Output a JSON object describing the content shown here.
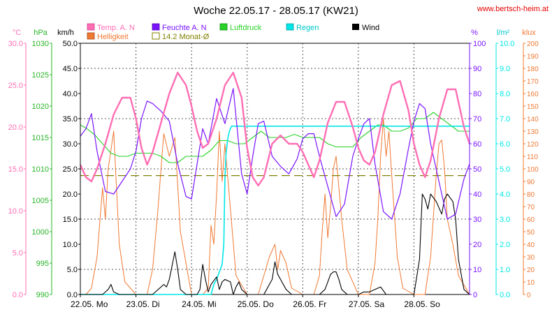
{
  "title": "Woche 22.05.17 - 28.05.17 (KW21)",
  "site": "www.bertsch-heim.at",
  "legend": [
    {
      "key": "temp",
      "label": "Temp. A. N",
      "color": "#ff6eb4"
    },
    {
      "key": "hum",
      "label": "Feuchte A. N",
      "color": "#7a14ff"
    },
    {
      "key": "press",
      "label": "Luftdruck",
      "color": "#28d228"
    },
    {
      "key": "rain",
      "label": "Regen",
      "color": "#00e6e6"
    },
    {
      "key": "wind",
      "label": "Wind",
      "color": "#000000"
    },
    {
      "key": "light",
      "label": "Helligkeit",
      "color": "#f07832"
    },
    {
      "key": "avg",
      "label": "14.2 Monat-Ø",
      "color": "#808000"
    }
  ],
  "axes": {
    "temp": {
      "unit": "°C",
      "ticks": [
        "30.0",
        "25.0",
        "20.0",
        "15.0",
        "10.0",
        "5.0",
        "0.0"
      ],
      "color": "#ff6eb4",
      "range": [
        0,
        30
      ]
    },
    "press": {
      "unit": "hPa",
      "ticks": [
        "1030",
        "1025",
        "1020",
        "1015",
        "1010",
        "1005",
        "1000",
        "995",
        "990"
      ],
      "color": "#28b428",
      "range": [
        990,
        1030
      ]
    },
    "wind": {
      "unit": "km/h",
      "ticks": [
        "50.0",
        "45.0",
        "40.0",
        "35.0",
        "30.0",
        "25.0",
        "20.0",
        "15.0",
        "10.0",
        "5.0",
        "0.0"
      ],
      "color": "#000000",
      "range": [
        0,
        50
      ]
    },
    "hum": {
      "unit": "%",
      "ticks": [
        "100",
        "90",
        "80",
        "70",
        "60",
        "50",
        "40",
        "30",
        "20",
        "10",
        "0"
      ],
      "color": "#7a14ff",
      "range": [
        0,
        100
      ]
    },
    "rain": {
      "unit": "l/m²",
      "ticks": [
        "10.0",
        "9.0",
        "8.0",
        "7.0",
        "6.0",
        "5.0",
        "4.0",
        "3.0",
        "2.0",
        "1.0",
        "0.0"
      ],
      "color": "#00e6e6",
      "range": [
        0,
        10
      ]
    },
    "light": {
      "unit": "klux",
      "ticks": [
        "200",
        "190",
        "180",
        "170",
        "160",
        "150",
        "140",
        "130",
        "120",
        "110",
        "100",
        "90",
        "80",
        "70",
        "60",
        "50",
        "40",
        "30",
        "20",
        "10",
        "0"
      ],
      "color": "#f07832",
      "range": [
        0,
        200
      ]
    }
  },
  "x_labels": [
    "22.05. Mo",
    "23.05. Di",
    "24.05. Mi",
    "25.05. Do",
    "26.05. Fr",
    "27.05. Sa",
    "28.05. So"
  ],
  "chart_data": {
    "type": "line",
    "title": "Woche 22.05.17 - 28.05.17 (KW21)",
    "x_domain_days": [
      0,
      7
    ],
    "categories": [
      "22.05. Mo",
      "23.05. Di",
      "24.05. Mi",
      "25.05. Do",
      "26.05. Fr",
      "27.05. Sa",
      "28.05. So"
    ],
    "grid": true,
    "series": [
      {
        "name": "Temp. A. N",
        "axis": "temp",
        "color": "#ff6eb4",
        "x": [
          0,
          0.1,
          0.2,
          0.3,
          0.45,
          0.6,
          0.75,
          0.9,
          1.0,
          1.1,
          1.2,
          1.3,
          1.45,
          1.6,
          1.75,
          1.9,
          2.0,
          2.1,
          2.2,
          2.3,
          2.45,
          2.6,
          2.75,
          2.9,
          3.0,
          3.1,
          3.2,
          3.3,
          3.45,
          3.6,
          3.75,
          3.9,
          4.0,
          4.1,
          4.2,
          4.3,
          4.45,
          4.6,
          4.75,
          4.9,
          5.0,
          5.1,
          5.2,
          5.3,
          5.45,
          5.6,
          5.75,
          5.9,
          6.0,
          6.1,
          6.2,
          6.3,
          6.45,
          6.6,
          6.75,
          6.9,
          7.0
        ],
        "y": [
          15.5,
          14,
          13.5,
          15,
          18,
          21.5,
          23.5,
          23.5,
          21,
          17.5,
          15.5,
          17,
          20.5,
          24,
          26.5,
          25,
          22.5,
          19.5,
          17.5,
          18,
          21,
          25,
          26.5,
          23.5,
          17.5,
          14,
          13,
          14,
          18,
          19,
          18,
          18,
          17,
          15.5,
          14,
          16,
          20.5,
          23,
          23,
          20,
          17.5,
          16,
          15.5,
          17,
          21.5,
          25,
          25.5,
          22,
          18,
          15.5,
          14,
          16,
          21,
          24.5,
          24.5,
          20,
          18
        ]
      },
      {
        "name": "Feuchte A. N",
        "axis": "hum",
        "color": "#7a14ff",
        "x": [
          0,
          0.1,
          0.2,
          0.3,
          0.45,
          0.6,
          0.75,
          0.9,
          1.0,
          1.1,
          1.2,
          1.3,
          1.45,
          1.6,
          1.75,
          1.9,
          2.0,
          2.1,
          2.2,
          2.3,
          2.45,
          2.6,
          2.75,
          2.9,
          3.0,
          3.1,
          3.2,
          3.3,
          3.45,
          3.6,
          3.75,
          3.9,
          4.0,
          4.1,
          4.2,
          4.3,
          4.45,
          4.6,
          4.75,
          4.9,
          5.0,
          5.1,
          5.2,
          5.3,
          5.45,
          5.6,
          5.75,
          5.9,
          6.0,
          6.1,
          6.2,
          6.3,
          6.45,
          6.6,
          6.75,
          6.9,
          7.0
        ],
        "y": [
          63,
          66,
          72,
          57,
          41,
          40,
          45,
          50,
          57,
          70,
          77,
          76,
          73,
          69,
          52,
          39,
          38,
          52,
          66,
          60,
          78,
          68,
          82,
          48,
          40,
          55,
          68,
          69,
          55,
          51,
          48,
          54,
          62,
          64,
          64,
          55,
          43,
          31,
          36,
          55,
          62,
          68,
          70,
          52,
          33,
          30,
          40,
          58,
          69,
          76,
          74,
          60,
          45,
          30,
          32,
          46,
          52
        ]
      },
      {
        "name": "Luftdruck",
        "axis": "press",
        "color": "#28d228",
        "x": [
          0,
          0.1,
          0.25,
          0.4,
          0.55,
          0.7,
          0.85,
          1.0,
          1.15,
          1.3,
          1.45,
          1.6,
          1.75,
          1.9,
          2.05,
          2.2,
          2.35,
          2.5,
          2.65,
          2.8,
          2.95,
          3.1,
          3.25,
          3.4,
          3.55,
          3.7,
          3.85,
          4.0,
          4.15,
          4.3,
          4.45,
          4.6,
          4.75,
          4.9,
          5.05,
          5.2,
          5.35,
          5.45,
          5.6,
          5.75,
          5.9,
          6.05,
          6.2,
          6.35,
          6.5,
          6.65,
          6.8,
          6.95,
          7.0
        ],
        "y": [
          1017,
          1016.5,
          1015.5,
          1014,
          1012.5,
          1012,
          1012,
          1012.5,
          1012.5,
          1012.5,
          1012,
          1011,
          1011,
          1012,
          1012,
          1012,
          1013,
          1014.5,
          1014.5,
          1014,
          1014,
          1015,
          1016,
          1015,
          1015,
          1015,
          1015.5,
          1015,
          1015,
          1015,
          1014,
          1013.5,
          1013.5,
          1013.5,
          1015,
          1016,
          1017,
          1017,
          1016,
          1016,
          1016.5,
          1018,
          1018,
          1019,
          1018,
          1017,
          1016,
          1016,
          1016
        ]
      },
      {
        "name": "Regen",
        "axis": "rain",
        "color": "#00e6e6",
        "x": [
          0,
          2.35,
          2.4,
          2.45,
          2.5,
          2.55,
          2.58,
          2.6,
          2.62,
          2.65,
          2.68,
          2.7,
          2.72,
          2.75,
          2.8,
          2.85,
          6.8,
          7.0
        ],
        "y": [
          0,
          0,
          0.4,
          0.6,
          0.9,
          1.2,
          2,
          4.6,
          5.6,
          6.2,
          6.5,
          6.6,
          6.7,
          6.7,
          6.7,
          6.7,
          6.7,
          6.7
        ]
      },
      {
        "name": "Wind",
        "axis": "wind",
        "color": "#000000",
        "x": [
          0,
          0.4,
          0.45,
          0.5,
          0.55,
          0.6,
          0.7,
          1.0,
          1.3,
          1.35,
          1.4,
          1.5,
          1.55,
          1.6,
          1.7,
          1.75,
          1.8,
          1.9,
          2.1,
          2.15,
          2.2,
          2.25,
          2.3,
          2.35,
          2.45,
          2.5,
          2.55,
          2.6,
          2.7,
          2.75,
          2.8,
          2.85,
          2.9,
          3.0,
          3.3,
          3.35,
          3.4,
          3.45,
          3.5,
          3.55,
          3.6,
          3.7,
          3.8,
          4.0,
          4.3,
          4.4,
          4.5,
          4.55,
          4.6,
          4.65,
          4.7,
          4.8,
          5.0,
          5.1,
          5.2,
          5.3,
          5.4,
          5.5,
          6.0,
          6.1,
          6.15,
          6.2,
          6.25,
          6.3,
          6.4,
          6.5,
          6.55,
          6.6,
          6.7,
          6.75,
          6.8,
          6.9,
          7.0
        ],
        "y": [
          0,
          0,
          0.5,
          1,
          2,
          0.5,
          0,
          0,
          0,
          0.5,
          1,
          2,
          1.5,
          3,
          8.5,
          5,
          1,
          0,
          0,
          1,
          6,
          3,
          0.5,
          2,
          3.5,
          1,
          2.5,
          3,
          2.5,
          0,
          1.5,
          2.5,
          1,
          0,
          0,
          1,
          2,
          3,
          6.5,
          4,
          3,
          1,
          0,
          0,
          0,
          1,
          4,
          4.5,
          4.5,
          3,
          1,
          0,
          0,
          0.5,
          0.5,
          1,
          1.5,
          0,
          0,
          7,
          20,
          19,
          17,
          20,
          18.5,
          16,
          19,
          20,
          18.5,
          15,
          7,
          1,
          0
        ]
      },
      {
        "name": "Helligkeit",
        "axis": "light",
        "color": "#f07832",
        "x": [
          0,
          0.1,
          0.2,
          0.3,
          0.4,
          0.45,
          0.5,
          0.6,
          0.7,
          0.8,
          1.0,
          1.2,
          1.3,
          1.4,
          1.45,
          1.5,
          1.6,
          1.7,
          1.8,
          2.0,
          2.2,
          2.3,
          2.35,
          2.4,
          2.45,
          2.5,
          2.55,
          2.6,
          2.8,
          3.0,
          3.2,
          3.3,
          3.4,
          3.45,
          3.5,
          3.55,
          3.6,
          3.7,
          3.8,
          4.0,
          4.2,
          4.3,
          4.35,
          4.4,
          4.45,
          4.5,
          4.55,
          4.6,
          4.7,
          4.8,
          5.0,
          5.2,
          5.3,
          5.35,
          5.4,
          5.45,
          5.5,
          5.55,
          5.6,
          5.7,
          5.8,
          6.0,
          6.2,
          6.3,
          6.4,
          6.45,
          6.5,
          6.55,
          6.6,
          6.7,
          6.8,
          7.0
        ],
        "y": [
          0,
          0,
          5,
          30,
          85,
          60,
          100,
          130,
          40,
          10,
          0,
          0,
          20,
          70,
          100,
          128,
          110,
          125,
          50,
          0,
          0,
          5,
          55,
          40,
          80,
          130,
          90,
          120,
          15,
          0,
          0,
          15,
          30,
          35,
          40,
          20,
          35,
          25,
          5,
          0,
          0,
          15,
          50,
          80,
          45,
          70,
          100,
          110,
          60,
          20,
          0,
          0,
          25,
          60,
          110,
          140,
          110,
          130,
          95,
          30,
          5,
          0,
          0,
          30,
          95,
          120,
          123,
          100,
          60,
          40,
          15,
          0
        ]
      },
      {
        "name": "14.2 Monat-Ø",
        "axis": "temp",
        "color": "#808000",
        "dashed": true,
        "x": [
          0,
          7
        ],
        "y": [
          14.2,
          14.2
        ]
      }
    ]
  }
}
